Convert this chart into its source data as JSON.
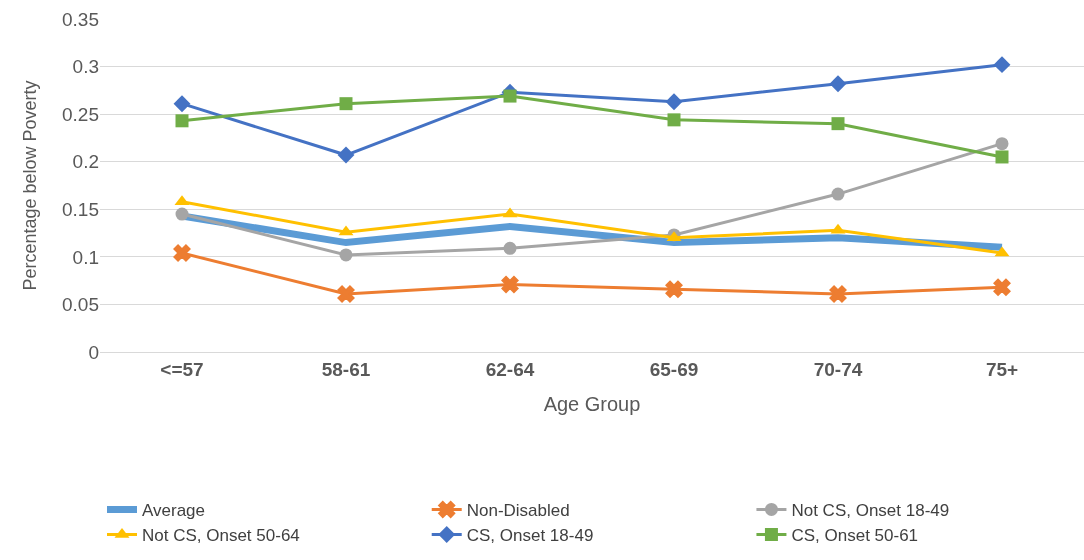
{
  "chart_data": {
    "type": "line",
    "xlabel": "Age Group",
    "ylabel": "Percentage below Poverty",
    "categories": [
      "<=57",
      "58-61",
      "62-64",
      "65-69",
      "70-74",
      "75+"
    ],
    "ylim": [
      0,
      0.35
    ],
    "yticks": [
      0,
      {
        "value": 0.05,
        "label": "0.05"
      },
      {
        "value": 0.1,
        "label": "0.1"
      },
      {
        "value": 0.15,
        "label": "0.15"
      },
      {
        "value": 0.2,
        "label": "0.2"
      },
      {
        "value": 0.25,
        "label": "0.25"
      },
      {
        "value": 0.3,
        "label": "0.3"
      },
      {
        "value": 0.35,
        "label": "0.35"
      }
    ],
    "grid": "y",
    "legend": "bottom",
    "line_style": "solid",
    "series": [
      {
        "name": "Average",
        "color": "#5b9bd5",
        "marker": "none",
        "values": [
          0.143,
          0.115,
          0.132,
          0.115,
          0.12,
          0.11
        ]
      },
      {
        "name": "Non-Disabled",
        "color": "#ed7d31",
        "marker": "cross",
        "values": [
          0.104,
          0.061,
          0.071,
          0.066,
          0.061,
          0.068
        ]
      },
      {
        "name": "Not CS, Onset 18-49",
        "color": "#a5a5a5",
        "marker": "circle",
        "values": [
          0.145,
          0.102,
          0.109,
          0.123,
          0.166,
          0.219
        ]
      },
      {
        "name": "Not CS, Onset 50-64",
        "color": "#ffc000",
        "marker": "triangle",
        "values": [
          0.158,
          0.126,
          0.145,
          0.12,
          0.128,
          0.104
        ]
      },
      {
        "name": "CS, Onset 18-49",
        "color": "#4472c4",
        "marker": "diamond",
        "values": [
          0.261,
          0.207,
          0.273,
          0.263,
          0.282,
          0.302
        ]
      },
      {
        "name": "CS, Onset 50-61",
        "color": "#70ad47",
        "marker": "square",
        "values": [
          0.243,
          0.261,
          0.269,
          0.244,
          0.24,
          0.205
        ]
      }
    ]
  }
}
